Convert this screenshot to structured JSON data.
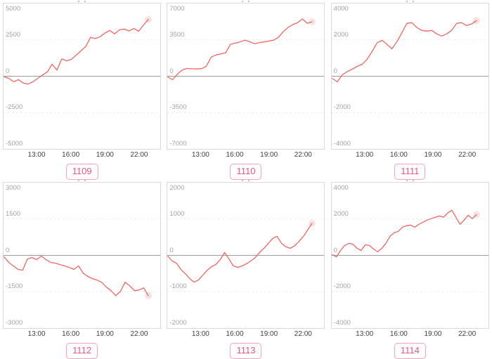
{
  "style": {
    "line_color": "#ee6666",
    "line_width": 1.3,
    "end_marker_color": "rgba(238,102,102,0.18)",
    "zero_line_color": "#9b9b9b",
    "grid_line_color": "#ebebeb",
    "box_border_color": "#d9d9d9",
    "y_label_color": "#a3a3a3",
    "x_label_color": "#3f3f3f",
    "badge_text_color": "#e05c80",
    "badge_border_color": "#f2a3bd"
  },
  "chart_data": [
    {
      "type": "line",
      "badge": "1109",
      "ylim": [
        -5000,
        5000
      ],
      "y_tick_labels": [
        "5000",
        "2500",
        "0",
        "-2500",
        "-5000"
      ],
      "x_tick_labels": [
        "13:00",
        "16:00",
        "19:00",
        "22:00"
      ],
      "x_tick_hours": [
        13,
        16,
        19,
        22
      ],
      "x_domain": [
        10.1,
        23.85
      ],
      "x_range": [
        10.15,
        22.8
      ],
      "values": [
        -30,
        -150,
        -380,
        -230,
        -480,
        -540,
        -380,
        -150,
        80,
        300,
        820,
        420,
        1190,
        1060,
        1160,
        1450,
        1750,
        2050,
        2670,
        2590,
        2720,
        2970,
        3150,
        2910,
        3190,
        3240,
        3110,
        3280,
        3090,
        3520,
        3900
      ]
    },
    {
      "type": "line",
      "badge": "1110",
      "ylim": [
        -7000,
        7000
      ],
      "y_tick_labels": [
        "7000",
        "3500",
        "0",
        "-3500",
        "-7000"
      ],
      "x_tick_labels": [
        "13:00",
        "16:00",
        "19:00",
        "22:00"
      ],
      "x_tick_hours": [
        13,
        16,
        19,
        22
      ],
      "x_domain": [
        10.1,
        23.85
      ],
      "x_range": [
        10.15,
        22.8
      ],
      "values": [
        -70,
        -340,
        200,
        600,
        750,
        720,
        700,
        730,
        950,
        1840,
        2040,
        2150,
        2240,
        3060,
        3200,
        3300,
        3470,
        3330,
        3130,
        3230,
        3300,
        3380,
        3470,
        3740,
        4280,
        4700,
        4970,
        5170,
        5510,
        5100,
        5240
      ]
    },
    {
      "type": "line",
      "badge": "1111",
      "ylim": [
        -4000,
        4000
      ],
      "y_tick_labels": [
        "4000",
        "2000",
        "0",
        "-2000",
        "-4000"
      ],
      "x_tick_labels": [
        "13:00",
        "16:00",
        "19:00",
        "22:00"
      ],
      "x_tick_hours": [
        13,
        16,
        19,
        22
      ],
      "x_domain": [
        10.1,
        23.85
      ],
      "x_range": [
        10.15,
        22.8
      ],
      "values": [
        -120,
        -310,
        80,
        250,
        390,
        540,
        660,
        930,
        1360,
        1830,
        1980,
        1750,
        1510,
        1900,
        2400,
        2910,
        2950,
        2680,
        2520,
        2480,
        2520,
        2330,
        2210,
        2330,
        2520,
        2910,
        2950,
        2790,
        2870,
        3060
      ]
    },
    {
      "type": "line",
      "badge": "1112",
      "ylim": [
        -3000,
        3000
      ],
      "y_tick_labels": [
        "3000",
        "1500",
        "0",
        "-1500",
        "-3000"
      ],
      "x_tick_labels": [
        "13:00",
        "16:00",
        "19:00",
        "22:00"
      ],
      "x_tick_hours": [
        13,
        16,
        19,
        22
      ],
      "x_domain": [
        10.1,
        23.85
      ],
      "x_range": [
        10.15,
        22.8
      ],
      "values": [
        -60,
        -290,
        -435,
        -580,
        -610,
        -150,
        -90,
        -175,
        -30,
        -175,
        -290,
        -320,
        -380,
        -435,
        -495,
        -580,
        -435,
        -730,
        -870,
        -960,
        -1020,
        -1110,
        -1310,
        -1455,
        -1660,
        -1490,
        -1110,
        -1250,
        -1455,
        -1430,
        -1340,
        -1660
      ]
    },
    {
      "type": "line",
      "badge": "1113",
      "ylim": [
        -2000,
        2000
      ],
      "y_tick_labels": [
        "2000",
        "1000",
        "0",
        "-1000",
        "-2000"
      ],
      "x_tick_labels": [
        "13:00",
        "16:00",
        "19:00",
        "22:00"
      ],
      "x_tick_hours": [
        13,
        16,
        19,
        22
      ],
      "x_domain": [
        10.1,
        23.85
      ],
      "x_range": [
        10.15,
        22.8
      ],
      "values": [
        -20,
        -155,
        -215,
        -390,
        -505,
        -640,
        -735,
        -680,
        -545,
        -410,
        -310,
        -250,
        -115,
        80,
        -100,
        -290,
        -330,
        -290,
        -230,
        -155,
        -60,
        80,
        195,
        330,
        465,
        525,
        330,
        235,
        195,
        260,
        380,
        520,
        700,
        880
      ]
    },
    {
      "type": "line",
      "badge": "1114",
      "ylim": [
        -4000,
        4000
      ],
      "y_tick_labels": [
        "4000",
        "2000",
        "0",
        "-2000",
        "-4000"
      ],
      "x_tick_labels": [
        "13:00",
        "16:00",
        "19:00",
        "22:00"
      ],
      "x_tick_hours": [
        13,
        16,
        19,
        22
      ],
      "x_domain": [
        10.1,
        23.85
      ],
      "x_range": [
        10.15,
        22.8
      ],
      "values": [
        40,
        -80,
        270,
        545,
        660,
        620,
        390,
        270,
        580,
        545,
        350,
        195,
        390,
        660,
        1050,
        1240,
        1320,
        1550,
        1630,
        1670,
        1550,
        1710,
        1825,
        1940,
        2020,
        2100,
        2170,
        2100,
        2330,
        2480,
        2100,
        1710,
        1940,
        2210,
        2020,
        2250
      ]
    }
  ]
}
